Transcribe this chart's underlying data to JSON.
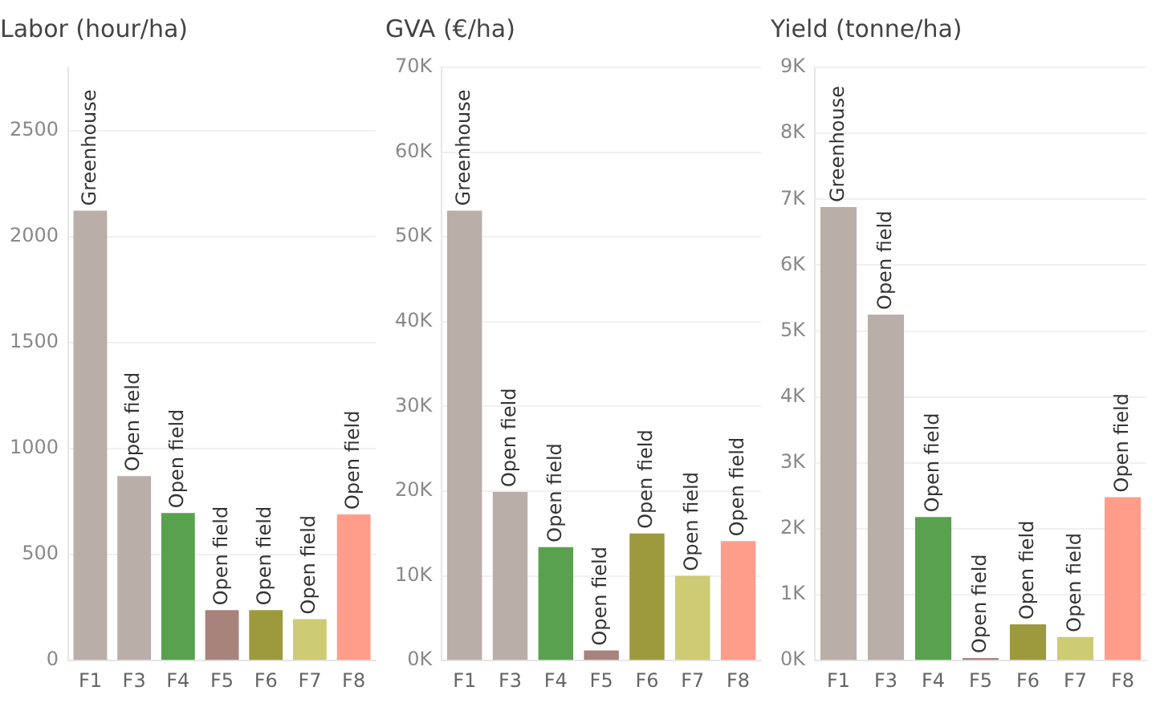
{
  "chart_data": [
    {
      "type": "bar",
      "title": "Labor (hour/ha)",
      "categories": [
        "F1",
        "F3",
        "F4",
        "F5",
        "F6",
        "F7",
        "F8"
      ],
      "values": [
        2124,
        871,
        697,
        238,
        238,
        196,
        690
      ],
      "colors": [
        "#b9aea8",
        "#b9aea8",
        "#59a14f",
        "#a7837b",
        "#9c9a3c",
        "#cdcb74",
        "#ff9d8a"
      ],
      "ylim": [
        0,
        2800
      ],
      "yticks": [
        0,
        500,
        1000,
        1500,
        2000,
        2500
      ],
      "grid": "y",
      "legend": false,
      "annotations": [
        {
          "text": "Greenhouse",
          "x": "F1",
          "y": 2124
        },
        {
          "text": "Open field",
          "x": "F3",
          "y": 871
        },
        {
          "text": "Open field",
          "x": "F4",
          "y": 697
        },
        {
          "text": "Open field",
          "x": "F5",
          "y": 238
        },
        {
          "text": "Open field",
          "x": "F6",
          "y": 238
        },
        {
          "text": "Open field",
          "x": "F7",
          "y": 196
        },
        {
          "text": "Open field",
          "x": "F8",
          "y": 690
        }
      ]
    },
    {
      "type": "bar",
      "title": "GVA (€/ha)",
      "categories": [
        "F1",
        "F3",
        "F4",
        "F5",
        "F6",
        "F7",
        "F8"
      ],
      "values": [
        53100,
        19900,
        13400,
        1200,
        15000,
        10000,
        14100
      ],
      "colors": [
        "#b9aea8",
        "#b9aea8",
        "#59a14f",
        "#a7837b",
        "#9c9a3c",
        "#cdcb74",
        "#ff9d8a"
      ],
      "ylim": [
        0,
        70000
      ],
      "yticks": [
        {
          "value": 0,
          "label": "0K"
        },
        {
          "value": 10000,
          "label": "10K"
        },
        {
          "value": 20000,
          "label": "20K"
        },
        {
          "value": 30000,
          "label": "30K"
        },
        {
          "value": 40000,
          "label": "40K"
        },
        {
          "value": 50000,
          "label": "50K"
        },
        {
          "value": 60000,
          "label": "60K"
        },
        {
          "value": 70000,
          "label": "70K"
        }
      ],
      "grid": "y",
      "legend": false,
      "annotations": [
        {
          "text": "Greenhouse",
          "x": "F1",
          "y": 53100
        },
        {
          "text": "Open field",
          "x": "F3",
          "y": 19900
        },
        {
          "text": "Open field",
          "x": "F4",
          "y": 13400
        },
        {
          "text": "Open field",
          "x": "F5",
          "y": 1200
        },
        {
          "text": "Open field",
          "x": "F6",
          "y": 15000
        },
        {
          "text": "Open field",
          "x": "F7",
          "y": 10000
        },
        {
          "text": "Open field",
          "x": "F8",
          "y": 14100
        }
      ]
    },
    {
      "type": "bar",
      "title": "Yield (tonne/ha)",
      "categories": [
        "F1",
        "F3",
        "F4",
        "F5",
        "F6",
        "F7",
        "F8"
      ],
      "values": [
        6880,
        5250,
        2180,
        40,
        550,
        360,
        2480
      ],
      "colors": [
        "#b9aea8",
        "#b9aea8",
        "#59a14f",
        "#a7837b",
        "#9c9a3c",
        "#cdcb74",
        "#ff9d8a"
      ],
      "ylim": [
        0,
        9000
      ],
      "yticks": [
        {
          "value": 0,
          "label": "0K"
        },
        {
          "value": 1000,
          "label": "1K"
        },
        {
          "value": 2000,
          "label": "2K"
        },
        {
          "value": 3000,
          "label": "3K"
        },
        {
          "value": 4000,
          "label": "4K"
        },
        {
          "value": 5000,
          "label": "5K"
        },
        {
          "value": 6000,
          "label": "6K"
        },
        {
          "value": 7000,
          "label": "7K"
        },
        {
          "value": 8000,
          "label": "8K"
        },
        {
          "value": 9000,
          "label": "9K"
        }
      ],
      "grid": "y",
      "legend": false,
      "annotations": [
        {
          "text": "Greenhouse",
          "x": "F1",
          "y": 6880
        },
        {
          "text": "Open field",
          "x": "F3",
          "y": 5250
        },
        {
          "text": "Open field",
          "x": "F4",
          "y": 2180
        },
        {
          "text": "Open field",
          "x": "F5",
          "y": 40
        },
        {
          "text": "Open field",
          "x": "F6",
          "y": 550
        },
        {
          "text": "Open field",
          "x": "F7",
          "y": 360
        },
        {
          "text": "Open field",
          "x": "F8",
          "y": 2480
        }
      ]
    }
  ]
}
